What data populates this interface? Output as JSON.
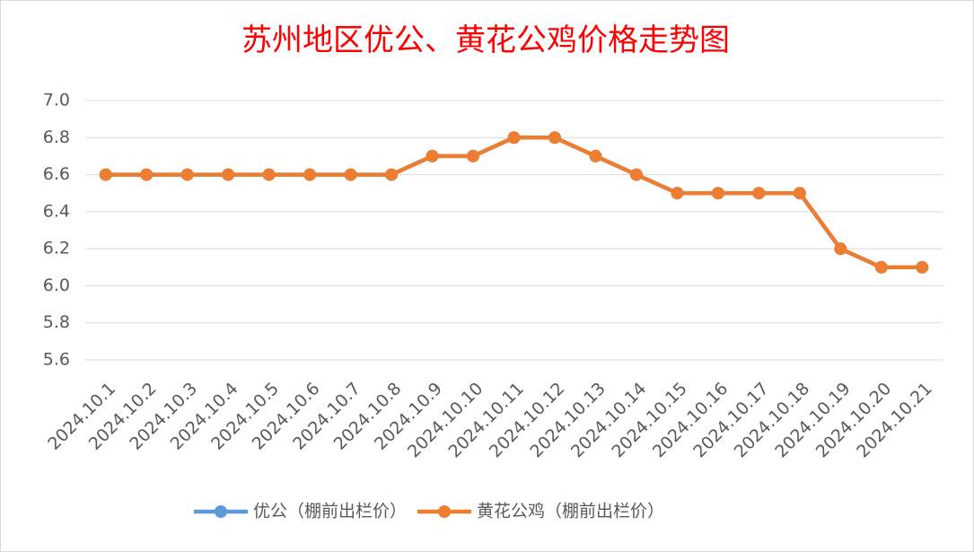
{
  "chart_data": {
    "type": "line",
    "title": "苏州地区优公、黄花公鸡价格走势图",
    "categories": [
      "2024.10.1",
      "2024.10.2",
      "2024.10.3",
      "2024.10.4",
      "2024.10.5",
      "2024.10.6",
      "2024.10.7",
      "2024.10.8",
      "2024.10.9",
      "2024.10.10",
      "2024.10.11",
      "2024.10.12",
      "2024.10.13",
      "2024.10.14",
      "2024.10.15",
      "2024.10.16",
      "2024.10.17",
      "2024.10.18",
      "2024.10.19",
      "2024.10.20",
      "2024.10.21"
    ],
    "series": [
      {
        "name": "优公（棚前出栏价）",
        "color": "#5b9bd5",
        "values": [
          6.6,
          6.6,
          6.6,
          6.6,
          6.6,
          6.6,
          6.6,
          6.6,
          6.7,
          6.7,
          6.8,
          6.8,
          6.7,
          6.6,
          6.5,
          6.5,
          6.5,
          6.5,
          6.2,
          6.1,
          6.1
        ]
      },
      {
        "name": "黄花公鸡（棚前出栏价）",
        "color": "#ed7d31",
        "values": [
          6.6,
          6.6,
          6.6,
          6.6,
          6.6,
          6.6,
          6.6,
          6.6,
          6.7,
          6.7,
          6.8,
          6.8,
          6.7,
          6.6,
          6.5,
          6.5,
          6.5,
          6.5,
          6.2,
          6.1,
          6.1
        ]
      }
    ],
    "ylim": [
      5.6,
      7.0
    ],
    "yticks": [
      5.6,
      5.8,
      {
        "value": 6.0,
        "label": "6.0"
      },
      6.2,
      6.4,
      6.6,
      6.8,
      {
        "value": 7.0,
        "label": "7.0"
      }
    ],
    "grid": true
  }
}
